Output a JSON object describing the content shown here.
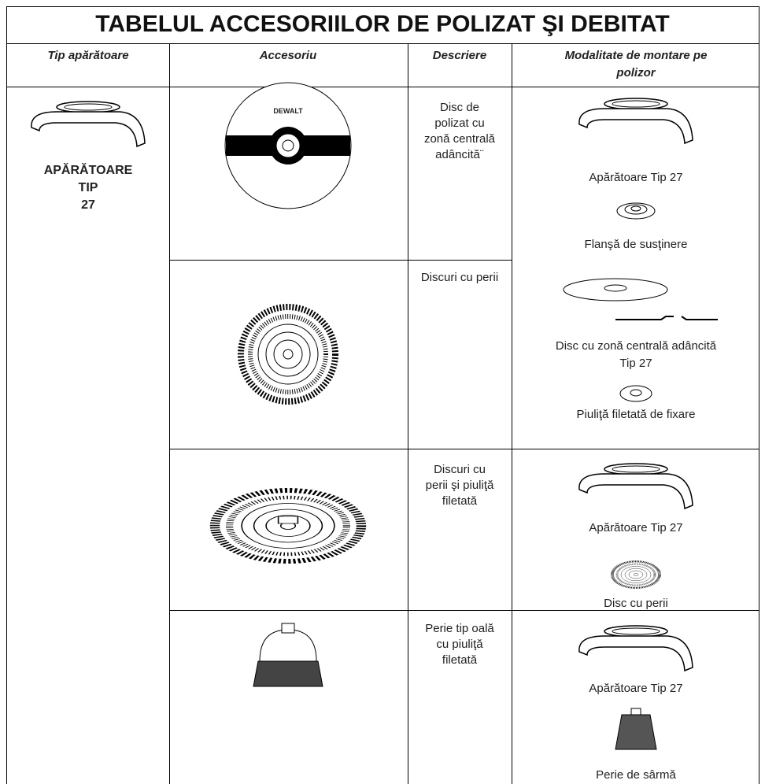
{
  "title": "TABELUL ACCESORIILOR DE POLIZAT ŞI DEBITAT",
  "headers": [
    [
      "Tip apărătoare"
    ],
    [
      "Accesoriu"
    ],
    [
      "Descriere"
    ],
    [
      "Modalitate de montare pe",
      "polizor"
    ]
  ],
  "guard_type": [
    "APĂRĂTOARE",
    "TIP",
    "27"
  ],
  "accessories": [
    {
      "brand": "DEWALT",
      "description": [
        "Disc de",
        "polizat cu",
        "zonă centrală",
        "adâncită¨"
      ]
    },
    {
      "description": [
        "Discuri cu perii"
      ]
    },
    {
      "description": [
        "Discuri cu",
        "perii şi piuliţă",
        "filetată"
      ]
    },
    {
      "description": [
        "Perie tip oală",
        "cu piuliţă",
        "filetată"
      ]
    }
  ],
  "mounting": [
    [
      "Apărătoare Tip 27",
      "Flanşă de susţinere",
      "Disc cu zonă centrală adâncită",
      "Tip 27",
      "Piuliţă filetată de fixare"
    ],
    [
      "Apărătoare Tip 27",
      "Disc cu perii"
    ],
    [
      "Apărătoare Tip 27",
      "Perie de sârmă"
    ]
  ]
}
